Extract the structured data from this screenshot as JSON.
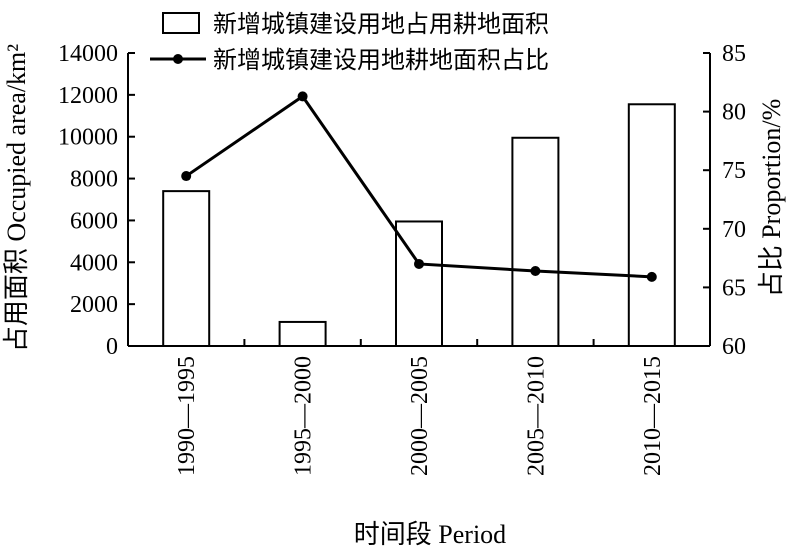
{
  "chart_data": {
    "type": "bar+line",
    "categories": [
      "1990—1995",
      "1995—2000",
      "2000—2005",
      "2005—2010",
      "2010—2015"
    ],
    "series": [
      {
        "name": "新增城镇建设用地占用耕地面积",
        "type": "bar",
        "axis": "left",
        "values": [
          7400,
          1150,
          5950,
          9950,
          11550
        ]
      },
      {
        "name": "新增城镇建设用地耕地面积占比",
        "type": "line",
        "axis": "right",
        "values": [
          74.5,
          81.3,
          67.0,
          66.4,
          65.9
        ]
      }
    ],
    "xlabel": "时间段 Period",
    "ylabel_left": "占用面积 Occupied area/km²",
    "ylabel_right": "占比 Proportion/%",
    "ylim_left": [
      0,
      14000
    ],
    "ylim_right": [
      60,
      85
    ],
    "yticks_left": [
      "0",
      "2000",
      "4000",
      "6000",
      "8000",
      "10000",
      "12000",
      "14000"
    ],
    "yticks_right": [
      "60",
      "65",
      "70",
      "75",
      "80",
      "85"
    ],
    "grid": false,
    "legend_position": "top"
  }
}
